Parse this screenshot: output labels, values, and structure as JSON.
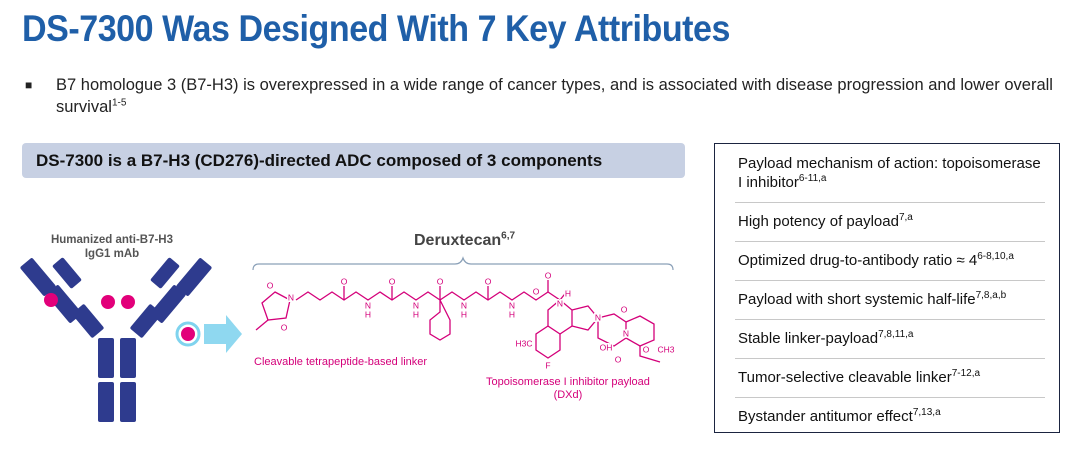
{
  "title": "DS-7300 Was Designed With 7 Key Attributes",
  "bullet": {
    "text": "B7 homologue 3 (B7-H3) is overexpressed in a wide range of cancer types, and is associated with disease progression and lower overall survival",
    "sup": "1-5"
  },
  "banner": "DS-7300 is a B7-H3 (CD276)-directed ADC composed of 3 components",
  "antibody_label": [
    "Humanized anti-B7-H3",
    "IgG1 mAb"
  ],
  "drug": {
    "name": "Deruxtecan",
    "sup": "6,7"
  },
  "linker_label": "Cleavable tetrapeptide-based linker",
  "payload_label": [
    "Topoisomerase I inhibitor payload",
    "(DXd)"
  ],
  "atoms": [
    "O",
    "N",
    "O",
    "O",
    "N",
    "H",
    "O",
    "N",
    "H",
    "O",
    "N",
    "H",
    "O",
    "N",
    "H",
    "O",
    "O",
    "N",
    "H",
    "N",
    "O",
    "N",
    "F",
    "O",
    "O",
    "OH",
    "H3C",
    "CH3"
  ],
  "attributes": [
    {
      "text": "Payload mechanism of action: topoisomerase I inhibitor",
      "sup": "6-11,a"
    },
    {
      "text": "High potency of payload",
      "sup": "7,a"
    },
    {
      "text": "Optimized drug-to-antibody ratio ≈ 4",
      "sup": "6-8,10,a"
    },
    {
      "text": "Payload with short systemic half-life",
      "sup": "7,8,a,b"
    },
    {
      "text": "Stable linker-payload",
      "sup": "7,8,11,a"
    },
    {
      "text": "Tumor-selective cleavable linker",
      "sup": "7-12,a"
    },
    {
      "text": "Bystander antitumor effect",
      "sup": "7,13,a"
    }
  ]
}
